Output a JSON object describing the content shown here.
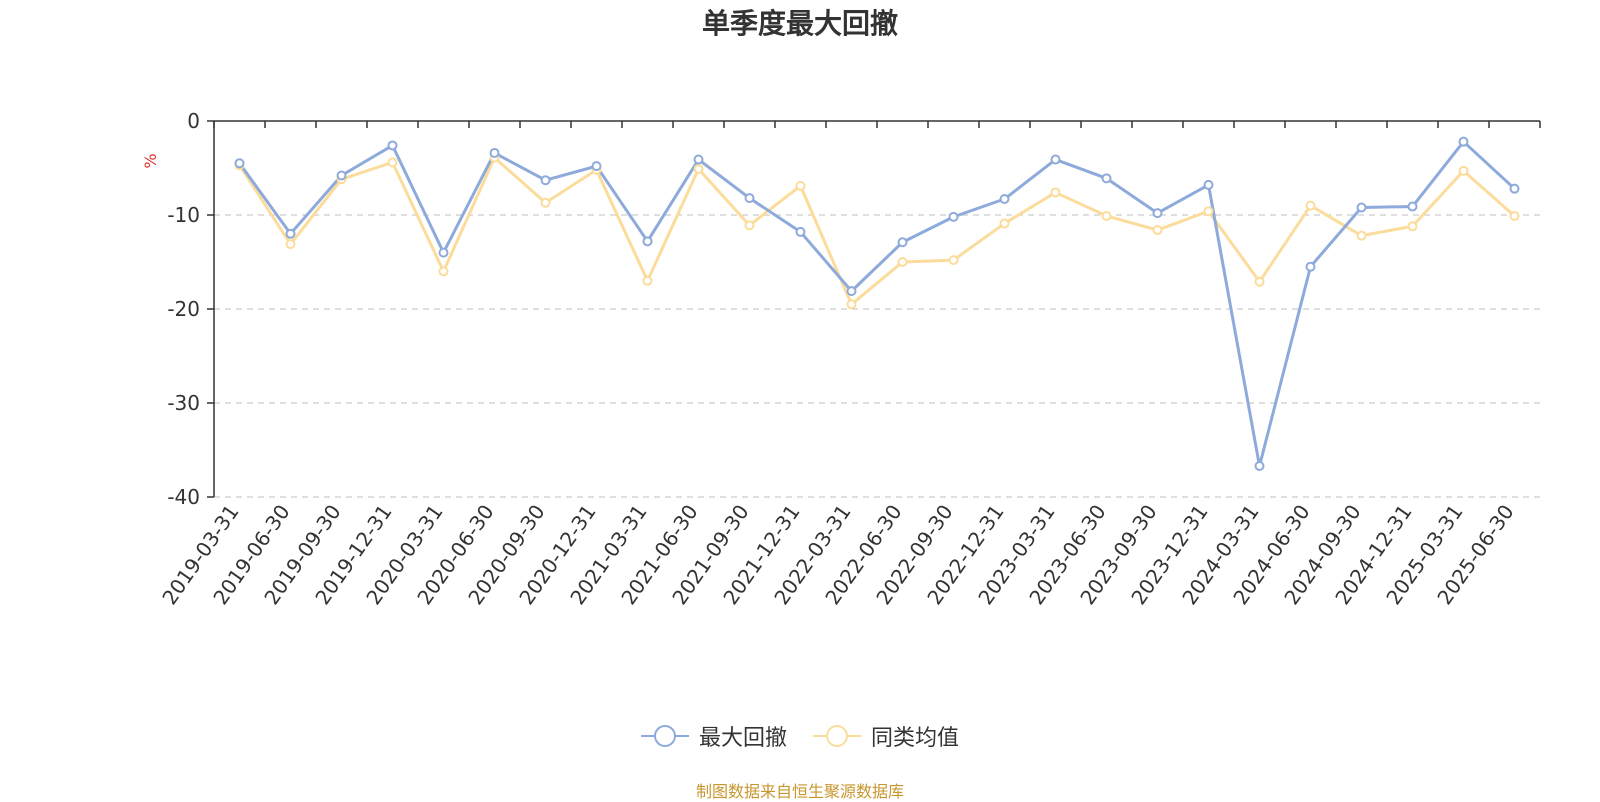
{
  "title": "单季度最大回撤",
  "source_note": "制图数据来自恒生聚源数据库",
  "colors": {
    "series_1": "#8eaadb",
    "series_2": "#fbdc9b",
    "unit": "#e03030",
    "axis": "#333333",
    "grid": "#cccccc",
    "source": "#c8962e"
  },
  "chart_data": {
    "type": "line",
    "title": "单季度最大回撤",
    "ylabel": "%",
    "ylim": [
      -40,
      0
    ],
    "yticks": [
      0,
      -10,
      -20,
      -30,
      -40
    ],
    "grid": "horizontal-dashed",
    "legend_position": "bottom-center",
    "x": [
      "2019-03-31",
      "2019-06-30",
      "2019-09-30",
      "2019-12-31",
      "2020-03-31",
      "2020-06-30",
      "2020-09-30",
      "2020-12-31",
      "2021-03-31",
      "2021-06-30",
      "2021-09-30",
      "2021-12-31",
      "2022-03-31",
      "2022-06-30",
      "2022-09-30",
      "2022-12-31",
      "2023-03-31",
      "2023-06-30",
      "2023-09-30",
      "2023-12-31",
      "2024-03-31",
      "2024-06-30",
      "2024-09-30",
      "2024-12-31",
      "2025-03-31",
      "2025-06-30"
    ],
    "series": [
      {
        "name": "最大回撤",
        "values": [
          -4.5,
          -12.0,
          -5.8,
          -2.6,
          -14.0,
          -3.4,
          -6.3,
          -4.8,
          -12.8,
          -4.1,
          -8.2,
          -11.8,
          -18.1,
          -12.9,
          -10.2,
          -8.3,
          -4.1,
          -6.1,
          -9.8,
          -6.8,
          -36.7,
          -15.5,
          -9.2,
          -9.1,
          -2.2,
          -7.2
        ]
      },
      {
        "name": "同类均值",
        "values": [
          -4.7,
          -13.1,
          -6.2,
          -4.4,
          -16.0,
          -3.9,
          -8.7,
          -5.2,
          -17.0,
          -5.1,
          -11.1,
          -6.9,
          -19.5,
          -15.0,
          -14.8,
          -10.9,
          -7.6,
          -10.1,
          -11.6,
          -9.6,
          -17.1,
          -9.0,
          -12.2,
          -11.2,
          -5.3,
          -10.1
        ]
      }
    ]
  }
}
